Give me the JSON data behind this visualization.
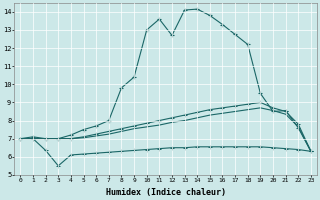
{
  "xlabel": "Humidex (Indice chaleur)",
  "bg_color": "#cce8e8",
  "line_color": "#1a6666",
  "grid_color": "#ffffff",
  "xlim": [
    -0.5,
    23.5
  ],
  "ylim": [
    5,
    14.5
  ],
  "xticks": [
    0,
    1,
    2,
    3,
    4,
    5,
    6,
    7,
    8,
    9,
    10,
    11,
    12,
    13,
    14,
    15,
    16,
    17,
    18,
    19,
    20,
    21,
    22,
    23
  ],
  "yticks": [
    5,
    6,
    7,
    8,
    9,
    10,
    11,
    12,
    13,
    14
  ],
  "series_top_x": [
    0,
    1,
    2,
    3,
    4,
    5,
    6,
    7,
    8,
    9,
    10,
    11,
    12,
    13,
    14,
    15,
    16,
    17,
    18,
    19,
    20,
    21,
    22,
    23
  ],
  "series_top_y": [
    7.0,
    7.1,
    7.0,
    7.0,
    7.2,
    7.5,
    7.7,
    8.0,
    9.8,
    10.4,
    13.0,
    13.6,
    12.7,
    14.1,
    14.15,
    13.8,
    13.3,
    12.75,
    12.2,
    9.5,
    8.5,
    8.55,
    7.6,
    6.3
  ],
  "series_mid_upper_x": [
    0,
    1,
    2,
    3,
    4,
    5,
    6,
    7,
    8,
    9,
    10,
    11,
    12,
    13,
    14,
    15,
    16,
    17,
    18,
    19,
    20,
    21,
    22,
    23
  ],
  "series_mid_upper_y": [
    7.0,
    7.0,
    7.0,
    7.0,
    7.0,
    7.1,
    7.25,
    7.4,
    7.55,
    7.7,
    7.85,
    8.0,
    8.15,
    8.3,
    8.45,
    8.6,
    8.7,
    8.8,
    8.9,
    9.0,
    8.7,
    8.5,
    7.8,
    6.3
  ],
  "series_mid_lower_x": [
    0,
    1,
    2,
    3,
    4,
    5,
    6,
    7,
    8,
    9,
    10,
    11,
    12,
    13,
    14,
    15,
    16,
    17,
    18,
    19,
    20,
    21,
    22,
    23
  ],
  "series_mid_lower_y": [
    7.0,
    7.0,
    7.0,
    7.0,
    7.0,
    7.05,
    7.15,
    7.25,
    7.4,
    7.55,
    7.65,
    7.75,
    7.9,
    8.0,
    8.15,
    8.3,
    8.4,
    8.5,
    8.6,
    8.7,
    8.55,
    8.35,
    7.65,
    6.3
  ],
  "series_bot_x": [
    0,
    1,
    2,
    3,
    4,
    5,
    6,
    7,
    8,
    9,
    10,
    11,
    12,
    13,
    14,
    15,
    16,
    17,
    18,
    19,
    20,
    21,
    22,
    23
  ],
  "series_bot_y": [
    7.0,
    7.0,
    6.35,
    5.5,
    6.1,
    6.15,
    6.2,
    6.25,
    6.3,
    6.35,
    6.4,
    6.45,
    6.5,
    6.5,
    6.55,
    6.55,
    6.55,
    6.55,
    6.55,
    6.55,
    6.5,
    6.45,
    6.4,
    6.3
  ]
}
